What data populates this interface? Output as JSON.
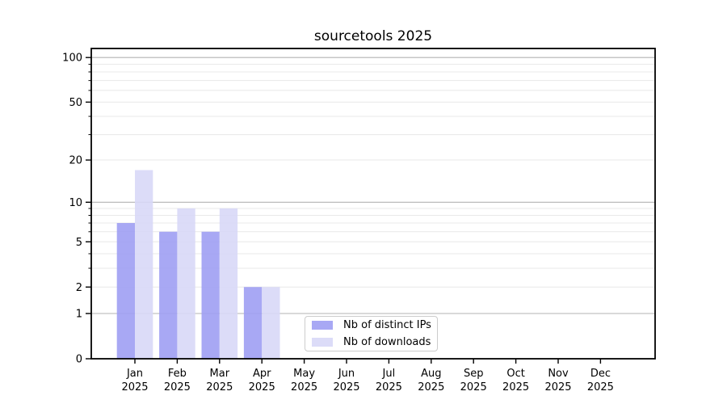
{
  "title": "sourcetools 2025",
  "chart_data": {
    "type": "bar",
    "title": "sourcetools 2025",
    "categories": [
      "Jan",
      "Feb",
      "Mar",
      "Apr",
      "May",
      "Jun",
      "Jul",
      "Aug",
      "Sep",
      "Oct",
      "Nov",
      "Dec"
    ],
    "year_label": "2025",
    "series": [
      {
        "name": "Nb of distinct IPs",
        "color": "#9c9cf2",
        "values": [
          7,
          6,
          6,
          2,
          0,
          0,
          0,
          0,
          0,
          0,
          0,
          0
        ]
      },
      {
        "name": "Nb of downloads",
        "color": "#d7d7f7",
        "values": [
          17,
          9,
          9,
          2,
          0,
          0,
          0,
          0,
          0,
          0,
          0,
          0
        ]
      }
    ],
    "y_scale": "log1p",
    "y_axis": {
      "tick_values": [
        0,
        1,
        2,
        5,
        10,
        20,
        50,
        100
      ],
      "tick_labels": [
        "0",
        "1",
        "2",
        "5",
        "10",
        "20",
        "50",
        "100"
      ],
      "major_grid_values": [
        1,
        10,
        100
      ],
      "minor_grid_values": [
        2,
        3,
        4,
        5,
        6,
        7,
        8,
        9,
        20,
        30,
        40,
        50,
        60,
        70,
        80,
        90
      ],
      "max": 115
    },
    "grid": "both",
    "legend_position": "lower center",
    "colors": {
      "major_grid": "#b3b3b3",
      "minor_grid": "#e8e8e8",
      "axis": "#000000",
      "background": "#ffffff"
    }
  }
}
